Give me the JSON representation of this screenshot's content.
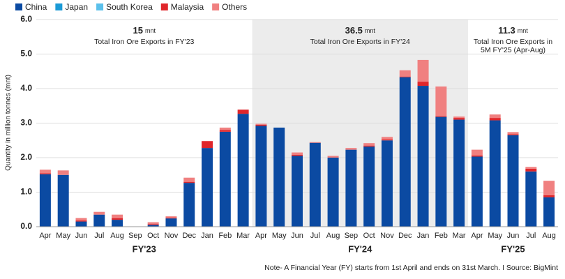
{
  "chart_data": {
    "type": "stacked_bar",
    "y_label": "Quantity in million tonnes (mnt)",
    "note": "Note- A Financial Year (FY) starts from 1st April and ends on 31st March.  I  Source: BigMint",
    "groups": [
      {
        "label": "FY'23",
        "categories": [
          "Apr",
          "May",
          "Jun",
          "Jul",
          "Aug",
          "Sep",
          "Oct",
          "Nov",
          "Dec",
          "Jan",
          "Feb",
          "Mar"
        ],
        "shaded": false,
        "annotation": {
          "value": 15,
          "unit": "mnt",
          "lines": [
            "Total Iron Ore Exports in FY'23"
          ]
        }
      },
      {
        "label": "FY'24",
        "categories": [
          "Apr",
          "May",
          "Jun",
          "Jul",
          "Aug",
          "Sep",
          "Oct",
          "Nov",
          "Dec",
          "Jan",
          "Feb",
          "Mar"
        ],
        "shaded": true,
        "annotation": {
          "value": 36.5,
          "unit": "mnt",
          "lines": [
            "Total Iron Ore Exports in FY'24"
          ]
        }
      },
      {
        "label": "FY'25",
        "categories": [
          "Apr",
          "May",
          "Jun",
          "Jul",
          "Aug"
        ],
        "shaded": false,
        "annotation": {
          "value": 11.3,
          "unit": "mnt",
          "lines": [
            "Total Iron Ore Exports in",
            "5M FY'25 (Apr-Aug)"
          ]
        }
      }
    ],
    "series": [
      {
        "name": "China",
        "color": "#0b4aa2",
        "values": [
          1.52,
          1.5,
          0.15,
          0.35,
          0.2,
          0,
          0.05,
          0.24,
          1.27,
          2.28,
          2.75,
          3.27,
          2.92,
          2.87,
          2.05,
          2.43,
          2.0,
          2.23,
          2.32,
          2.5,
          4.33,
          4.08,
          3.18,
          3.1,
          2.03,
          3.08,
          2.65,
          1.6,
          0.85
        ]
      },
      {
        "name": "Japan",
        "color": "#1a9ad6",
        "values": [
          0,
          0,
          0,
          0,
          0,
          0,
          0,
          0,
          0,
          0,
          0,
          0,
          0,
          0,
          0,
          0,
          0,
          0,
          0,
          0,
          0,
          0,
          0,
          0,
          0,
          0,
          0,
          0,
          0
        ]
      },
      {
        "name": "South Korea",
        "color": "#5bc0eb",
        "values": [
          0,
          0,
          0,
          0,
          0,
          0,
          0,
          0,
          0,
          0,
          0,
          0,
          0,
          0,
          0,
          0,
          0,
          0,
          0,
          0,
          0,
          0,
          0,
          0,
          0,
          0,
          0,
          0,
          0
        ]
      },
      {
        "name": "Malaysia",
        "color": "#e0262b",
        "values": [
          0.03,
          0,
          0.03,
          0,
          0.05,
          0,
          0.02,
          0.02,
          0.03,
          0.2,
          0.05,
          0.12,
          0.03,
          0,
          0.03,
          0,
          0,
          0,
          0.03,
          0.03,
          0.02,
          0.12,
          0.02,
          0.05,
          0.03,
          0.07,
          0.03,
          0.08,
          0.06
        ]
      },
      {
        "name": "Others",
        "color": "#f08080",
        "values": [
          0.1,
          0.13,
          0.07,
          0.08,
          0.1,
          0,
          0.06,
          0.04,
          0.12,
          0,
          0.07,
          0,
          0.03,
          0,
          0.07,
          0.02,
          0.05,
          0.05,
          0.07,
          0.07,
          0.18,
          0.63,
          0.86,
          0.04,
          0.17,
          0.1,
          0.06,
          0.05,
          0.42
        ]
      }
    ],
    "ylim": [
      0,
      6
    ],
    "yticks": [
      {
        "value": 0,
        "label": "0.0"
      },
      {
        "value": 1,
        "label": "1.0"
      },
      {
        "value": 2,
        "label": "2.0"
      },
      {
        "value": 3,
        "label": "3.0"
      },
      {
        "value": 4,
        "label": "4.0"
      },
      {
        "value": 5,
        "label": "5.0"
      },
      {
        "value": 6,
        "label": "6.0"
      }
    ],
    "grid": true
  }
}
